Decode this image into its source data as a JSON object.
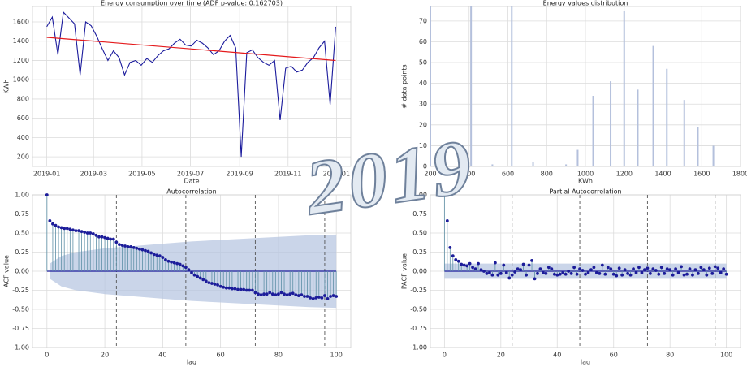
{
  "chart_data": [
    {
      "type": "line",
      "title": "Energy consumption over time (ADF p-value: 0.162703)",
      "x_label": "Date",
      "y_label": "KWh",
      "grid": true,
      "xlim": [
        -18,
        383
      ],
      "ylim": [
        100,
        1760
      ],
      "xticks": [
        {
          "value": 0,
          "label": "2019-01"
        },
        {
          "value": 59,
          "label": "2019-03"
        },
        {
          "value": 120,
          "label": "2019-05"
        },
        {
          "value": 181,
          "label": "2019-07"
        },
        {
          "value": 243,
          "label": "2019-09"
        },
        {
          "value": 304,
          "label": "2019-11"
        },
        {
          "value": 365,
          "label": "2020-01"
        }
      ],
      "yticks": [
        200,
        400,
        600,
        800,
        1000,
        1200,
        1400,
        1600
      ],
      "series": [
        {
          "color": "#1a1a9c",
          "x": [
            0,
            7,
            14,
            21,
            28,
            35,
            42,
            49,
            56,
            63,
            70,
            77,
            84,
            91,
            98,
            105,
            112,
            119,
            126,
            133,
            140,
            147,
            154,
            161,
            168,
            175,
            182,
            189,
            196,
            203,
            210,
            217,
            224,
            231,
            238,
            245,
            252,
            259,
            266,
            273,
            280,
            287,
            294,
            301,
            308,
            315,
            322,
            329,
            336,
            343,
            350,
            357,
            364
          ],
          "values": [
            1550,
            1650,
            1260,
            1700,
            1640,
            1580,
            1050,
            1600,
            1560,
            1450,
            1320,
            1200,
            1300,
            1230,
            1050,
            1180,
            1200,
            1150,
            1220,
            1180,
            1250,
            1300,
            1320,
            1380,
            1420,
            1360,
            1350,
            1410,
            1380,
            1330,
            1260,
            1300,
            1400,
            1460,
            1330,
            200,
            1280,
            1310,
            1230,
            1180,
            1150,
            1200,
            580,
            1120,
            1140,
            1080,
            1100,
            1180,
            1230,
            1330,
            1400,
            740,
            1550
          ]
        },
        {
          "color": "#e41a1c",
          "x": [
            0,
            364
          ],
          "values": [
            1440,
            1200
          ]
        }
      ]
    },
    {
      "type": "bar",
      "title": "Energy values distribution",
      "x_label": "KWh",
      "y_label": "# data points",
      "grid": true,
      "color": "#b4c0dc",
      "xlim": [
        200,
        1800
      ],
      "ylim": [
        0,
        77
      ],
      "xticks": [
        200,
        400,
        600,
        800,
        1000,
        1200,
        1400,
        1600,
        1800
      ],
      "yticks": [
        0,
        10,
        20,
        30,
        40,
        50,
        60,
        70
      ],
      "x": [
        200,
        410,
        520,
        620,
        730,
        900,
        960,
        1040,
        1130,
        1200,
        1270,
        1350,
        1420,
        1510,
        1580,
        1660
      ],
      "values": [
        77,
        77,
        1,
        77,
        2,
        1,
        8,
        34,
        41,
        75,
        37,
        58,
        47,
        32,
        19,
        10
      ]
    },
    {
      "type": "stem",
      "title": "Autocorrelation",
      "x_label": "lag",
      "y_label": "ACF value",
      "grid": true,
      "color": "#1c1c9a",
      "stem_color": "#5d8fa6",
      "band_color": "#b3c3df",
      "xlim": [
        -5,
        105
      ],
      "ylim": [
        -1,
        1
      ],
      "xticks": [
        0,
        20,
        40,
        60,
        80,
        100
      ],
      "yticks": [
        {
          "value": -1,
          "label": "-1.00"
        },
        {
          "value": -0.75,
          "label": "-0.75"
        },
        {
          "value": -0.5,
          "label": "-0.50"
        },
        {
          "value": -0.25,
          "label": "-0.25"
        },
        {
          "value": 0,
          "label": "0.00"
        },
        {
          "value": 0.25,
          "label": "0.25"
        },
        {
          "value": 0.5,
          "label": "0.50"
        },
        {
          "value": 0.75,
          "label": "0.75"
        },
        {
          "value": 1,
          "label": "1.00"
        }
      ],
      "vlines": [
        24,
        48,
        72,
        96
      ],
      "confidence": {
        "x": [
          1,
          5,
          10,
          20,
          30,
          40,
          50,
          60,
          70,
          80,
          90,
          100
        ],
        "values": [
          0.1,
          0.2,
          0.25,
          0.3,
          0.33,
          0.36,
          0.39,
          0.41,
          0.43,
          0.45,
          0.47,
          0.48
        ]
      },
      "values": [
        1.0,
        0.66,
        0.62,
        0.6,
        0.58,
        0.57,
        0.56,
        0.56,
        0.55,
        0.54,
        0.53,
        0.53,
        0.52,
        0.51,
        0.5,
        0.5,
        0.49,
        0.47,
        0.45,
        0.45,
        0.44,
        0.43,
        0.42,
        0.42,
        0.38,
        0.35,
        0.34,
        0.33,
        0.32,
        0.32,
        0.31,
        0.3,
        0.29,
        0.28,
        0.27,
        0.26,
        0.24,
        0.22,
        0.21,
        0.2,
        0.18,
        0.15,
        0.13,
        0.12,
        0.11,
        0.1,
        0.09,
        0.07,
        0.05,
        0.02,
        -0.02,
        -0.05,
        -0.07,
        -0.09,
        -0.11,
        -0.13,
        -0.15,
        -0.16,
        -0.17,
        -0.18,
        -0.2,
        -0.21,
        -0.22,
        -0.22,
        -0.23,
        -0.23,
        -0.24,
        -0.24,
        -0.24,
        -0.25,
        -0.25,
        -0.25,
        -0.28,
        -0.3,
        -0.31,
        -0.3,
        -0.3,
        -0.28,
        -0.3,
        -0.31,
        -0.3,
        -0.28,
        -0.3,
        -0.31,
        -0.3,
        -0.29,
        -0.31,
        -0.32,
        -0.31,
        -0.33,
        -0.33,
        -0.35,
        -0.36,
        -0.35,
        -0.34,
        -0.35,
        -0.32,
        -0.36,
        -0.33,
        -0.32,
        -0.33
      ]
    },
    {
      "type": "stem",
      "title": "Partial Autocorrelation",
      "x_label": "lag",
      "y_label": "PACF value",
      "grid": true,
      "color": "#1c1c9a",
      "stem_color": "#5d8fa6",
      "band_color": "#b3c3df",
      "xlim": [
        -5,
        105
      ],
      "ylim": [
        -1,
        1
      ],
      "xticks": [
        0,
        20,
        40,
        60,
        80,
        100
      ],
      "yticks": [
        {
          "value": -1,
          "label": "-1.00"
        },
        {
          "value": -0.75,
          "label": "-0.75"
        },
        {
          "value": -0.5,
          "label": "-0.50"
        },
        {
          "value": -0.25,
          "label": "-0.25"
        },
        {
          "value": 0,
          "label": "0.00"
        },
        {
          "value": 0.25,
          "label": "0.25"
        },
        {
          "value": 0.5,
          "label": "0.50"
        },
        {
          "value": 0.75,
          "label": "0.75"
        },
        {
          "value": 1,
          "label": "1.00"
        }
      ],
      "vlines": [
        24,
        48,
        72,
        96
      ],
      "confidence": {
        "x": [
          0,
          100
        ],
        "values": [
          0.1,
          0.1
        ]
      },
      "values": [
        1.0,
        0.66,
        0.31,
        0.2,
        0.15,
        0.13,
        0.09,
        0.08,
        0.07,
        0.1,
        0.05,
        0.03,
        0.1,
        0.02,
        0.0,
        -0.03,
        -0.02,
        -0.05,
        0.11,
        -0.05,
        -0.03,
        0.08,
        -0.02,
        -0.09,
        -0.05,
        -0.01,
        0.03,
        0.02,
        0.09,
        -0.05,
        0.08,
        0.14,
        -0.1,
        -0.03,
        0.03,
        -0.02,
        -0.03,
        0.05,
        0.03,
        -0.04,
        -0.05,
        -0.04,
        -0.02,
        -0.04,
        0.0,
        -0.03,
        0.05,
        -0.04,
        0.03,
        0.01,
        -0.04,
        -0.02,
        0.02,
        0.05,
        -0.02,
        -0.03,
        0.08,
        -0.04,
        0.05,
        0.03,
        -0.04,
        -0.06,
        0.04,
        -0.05,
        0.02,
        -0.03,
        -0.05,
        0.03,
        -0.02,
        0.05,
        -0.02,
        0.02,
        0.04,
        -0.03,
        0.03,
        0.01,
        -0.04,
        0.05,
        -0.03,
        0.03,
        0.02,
        -0.05,
        0.03,
        -0.02,
        0.06,
        -0.05,
        -0.04,
        0.03,
        -0.05,
        0.02,
        -0.03,
        0.05,
        0.02,
        -0.05,
        0.04,
        -0.03,
        0.06,
        0.04,
        -0.02,
        0.03,
        -0.04
      ]
    }
  ],
  "watermark": "2019"
}
